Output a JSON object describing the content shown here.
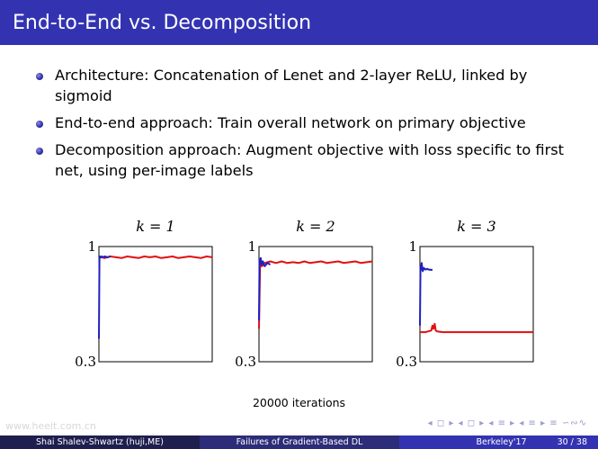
{
  "slide": {
    "title": "End-to-End vs. Decomposition"
  },
  "bullets": [
    "Architecture: Concatenation of Lenet and 2-layer ReLU, linked by sigmoid",
    "End-to-end approach: Train overall network on primary objective",
    "Decomposition approach: Augment objective with loss specific to first net, using per-image labels"
  ],
  "chart_data": [
    {
      "type": "line",
      "title": "k = 1",
      "xlabel": "20000 iterations",
      "ylabel": "",
      "ylim": [
        0.3,
        1
      ],
      "y_tick_labels": [
        "1",
        "0.3"
      ],
      "grid": false,
      "series": [
        {
          "color": "#2020c0",
          "x": [
            0,
            100,
            200,
            300,
            500,
            800,
            1000,
            1500,
            2000
          ],
          "y": [
            0.44,
            0.93,
            0.94,
            0.935,
            0.94,
            0.935,
            0.94,
            0.935,
            0.94
          ]
        },
        {
          "color": "#e01010",
          "x": [
            0,
            500,
            1000,
            2000,
            3000,
            4000,
            5000,
            6000,
            7000,
            8000,
            9000,
            10000,
            11000,
            12000,
            13000,
            14000,
            15000,
            16000,
            17000,
            18000,
            19000,
            20000
          ],
          "y": [
            0.93,
            0.935,
            0.93,
            0.94,
            0.935,
            0.93,
            0.94,
            0.935,
            0.93,
            0.94,
            0.935,
            0.94,
            0.93,
            0.935,
            0.94,
            0.93,
            0.935,
            0.94,
            0.935,
            0.93,
            0.94,
            0.935
          ]
        }
      ]
    },
    {
      "type": "line",
      "title": "k = 2",
      "xlabel": "20000 iterations",
      "ylabel": "",
      "ylim": [
        0.3,
        1
      ],
      "y_tick_labels": [
        "1",
        "0.3"
      ],
      "grid": false,
      "series": [
        {
          "color": "#2020c0",
          "x": [
            0,
            100,
            200,
            300,
            500,
            700,
            1000,
            1500,
            2000
          ],
          "y": [
            0.55,
            0.92,
            0.9,
            0.93,
            0.89,
            0.91,
            0.88,
            0.9,
            0.89
          ]
        },
        {
          "color": "#e01010",
          "x": [
            0,
            200,
            500,
            1000,
            2000,
            3000,
            4000,
            5000,
            6000,
            7000,
            8000,
            9000,
            10000,
            11000,
            12000,
            13000,
            14000,
            15000,
            16000,
            17000,
            18000,
            19000,
            20000
          ],
          "y": [
            0.5,
            0.91,
            0.88,
            0.9,
            0.91,
            0.9,
            0.91,
            0.9,
            0.905,
            0.9,
            0.91,
            0.9,
            0.905,
            0.91,
            0.9,
            0.905,
            0.91,
            0.9,
            0.905,
            0.91,
            0.9,
            0.905,
            0.91
          ]
        }
      ]
    },
    {
      "type": "line",
      "title": "k = 3",
      "xlabel": "20000 iterations",
      "ylabel": "",
      "ylim": [
        0.3,
        1
      ],
      "y_tick_labels": [
        "1",
        "0.3"
      ],
      "grid": false,
      "series": [
        {
          "color": "#2020c0",
          "x": [
            0,
            100,
            200,
            300,
            500,
            700,
            1000,
            1300,
            1500,
            1700,
            2000,
            2200
          ],
          "y": [
            0.52,
            0.88,
            0.86,
            0.9,
            0.85,
            0.87,
            0.86,
            0.865,
            0.86,
            0.86,
            0.858,
            0.86
          ]
        },
        {
          "color": "#e01010",
          "x": [
            0,
            500,
            1000,
            2000,
            2200,
            2400,
            2600,
            2800,
            3000,
            4000,
            6000,
            8000,
            10000,
            12000,
            14000,
            16000,
            18000,
            20000
          ],
          "y": [
            0.48,
            0.48,
            0.48,
            0.49,
            0.52,
            0.5,
            0.53,
            0.49,
            0.485,
            0.48,
            0.48,
            0.48,
            0.48,
            0.48,
            0.48,
            0.48,
            0.48,
            0.48
          ]
        }
      ]
    }
  ],
  "caption": "20000 iterations",
  "watermark": "www.heeit.com.cn",
  "nav_symbols": "◂ ◻ ▸ ◂ ◻ ▸ ◂ ≡ ▸ ◂ ≡ ▸ ≡ ∽∾∿",
  "footer": {
    "author": "Shai Shalev-Shwartz (huji,ME)",
    "talk": "Failures of Gradient-Based DL",
    "venue": "Berkeley'17",
    "page": "30 / 38"
  },
  "colors": {
    "title_bar": "#3333b2",
    "blue_series": "#2020c0",
    "red_series": "#e01010"
  }
}
